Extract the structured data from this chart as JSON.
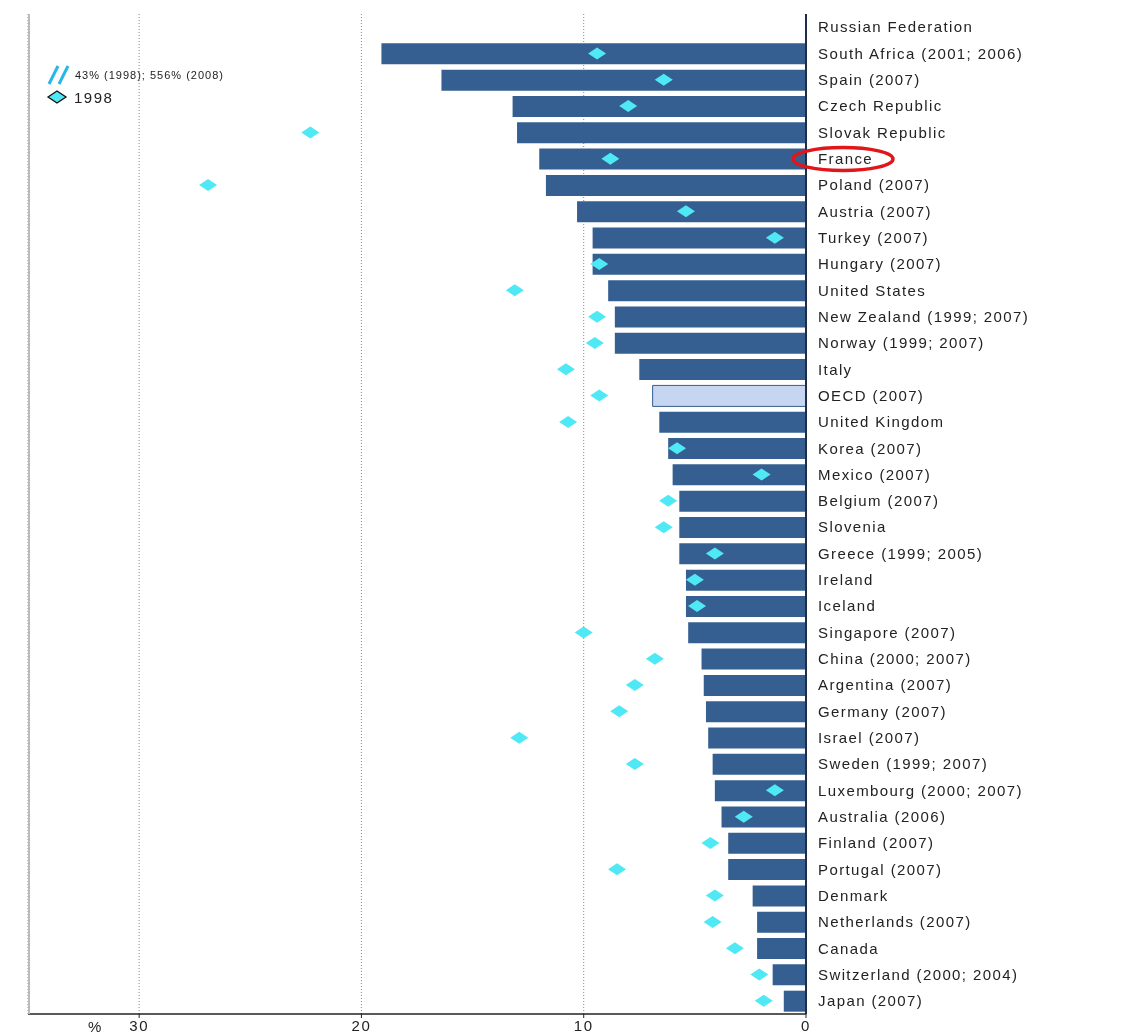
{
  "chart_data": {
    "type": "bar",
    "orientation": "horizontal",
    "xlabel": "%",
    "categories": [
      "Russian Federation",
      "South Africa (2001; 2006)",
      "Spain (2007)",
      "Czech Republic",
      "Slovak Republic",
      "France",
      "Poland (2007)",
      "Austria (2007)",
      "Turkey (2007)",
      "Hungary (2007)",
      "United States",
      "New Zealand (1999; 2007)",
      "Norway (1999; 2007)",
      "Italy",
      "OECD (2007)",
      "United Kingdom",
      "Korea (2007)",
      "Mexico (2007)",
      "Belgium (2007)",
      "Slovenia",
      "Greece (1999; 2005)",
      "Ireland",
      "Iceland",
      "Singapore (2007)",
      "China (2000; 2007)",
      "Argentina (2007)",
      "Germany (2007)",
      "Israel (2007)",
      "Sweden (1999; 2007)",
      "Luxembourg (2000; 2007)",
      "Australia (2006)",
      "Finland (2007)",
      "Portugal (2007)",
      "Denmark",
      "Netherlands (2007)",
      "Canada",
      "Switzerland (2000; 2004)",
      "Japan (2007)"
    ],
    "series": [
      {
        "color": "#365f91",
        "colors": [
          "#365f91",
          "#365f91",
          "#365f91",
          "#365f91",
          "#365f91",
          "#365f91",
          "#365f91",
          "#365f91",
          "#365f91",
          "#365f91",
          "#365f91",
          "#365f91",
          "#365f91",
          "#365f91",
          "#c6d5f0",
          "#365f91",
          "#365f91",
          "#365f91",
          "#365f91",
          "#365f91",
          "#365f91",
          "#365f91",
          "#365f91",
          "#365f91",
          "#365f91",
          "#365f91",
          "#365f91",
          "#365f91",
          "#365f91",
          "#365f91",
          "#365f91",
          "#365f91",
          "#365f91",
          "#365f91",
          "#365f91",
          "#365f91",
          "#365f91",
          "#365f91"
        ],
        "values": [
          null,
          19.1,
          16.4,
          13.2,
          13.0,
          12.0,
          11.7,
          10.3,
          9.6,
          9.6,
          8.9,
          8.6,
          8.6,
          7.5,
          6.9,
          6.6,
          6.2,
          6.0,
          5.7,
          5.7,
          5.7,
          5.4,
          5.4,
          5.3,
          4.7,
          4.6,
          4.5,
          4.4,
          4.2,
          4.1,
          3.8,
          3.5,
          3.5,
          2.4,
          2.2,
          2.2,
          1.5,
          1.0
        ]
      },
      {
        "type": "scatter",
        "name": "1998",
        "color": "#4fe8f5",
        "marker": "diamond",
        "values": [
          null,
          9.4,
          6.4,
          8.0,
          22.3,
          8.8,
          26.9,
          5.4,
          1.4,
          9.3,
          13.1,
          9.4,
          9.5,
          10.8,
          9.3,
          10.7,
          5.8,
          2.0,
          6.2,
          6.4,
          4.1,
          5.0,
          4.9,
          10.0,
          6.8,
          7.7,
          8.4,
          12.9,
          7.7,
          1.4,
          2.8,
          4.3,
          8.5,
          4.1,
          4.2,
          3.2,
          2.1,
          1.9
        ]
      }
    ],
    "xlim": [
      35,
      0
    ],
    "xticks": [
      30,
      20,
      10,
      0
    ],
    "grid": "x",
    "legend": "top left",
    "annotations": [
      "43% (1998); 556% (2008)"
    ]
  }
}
